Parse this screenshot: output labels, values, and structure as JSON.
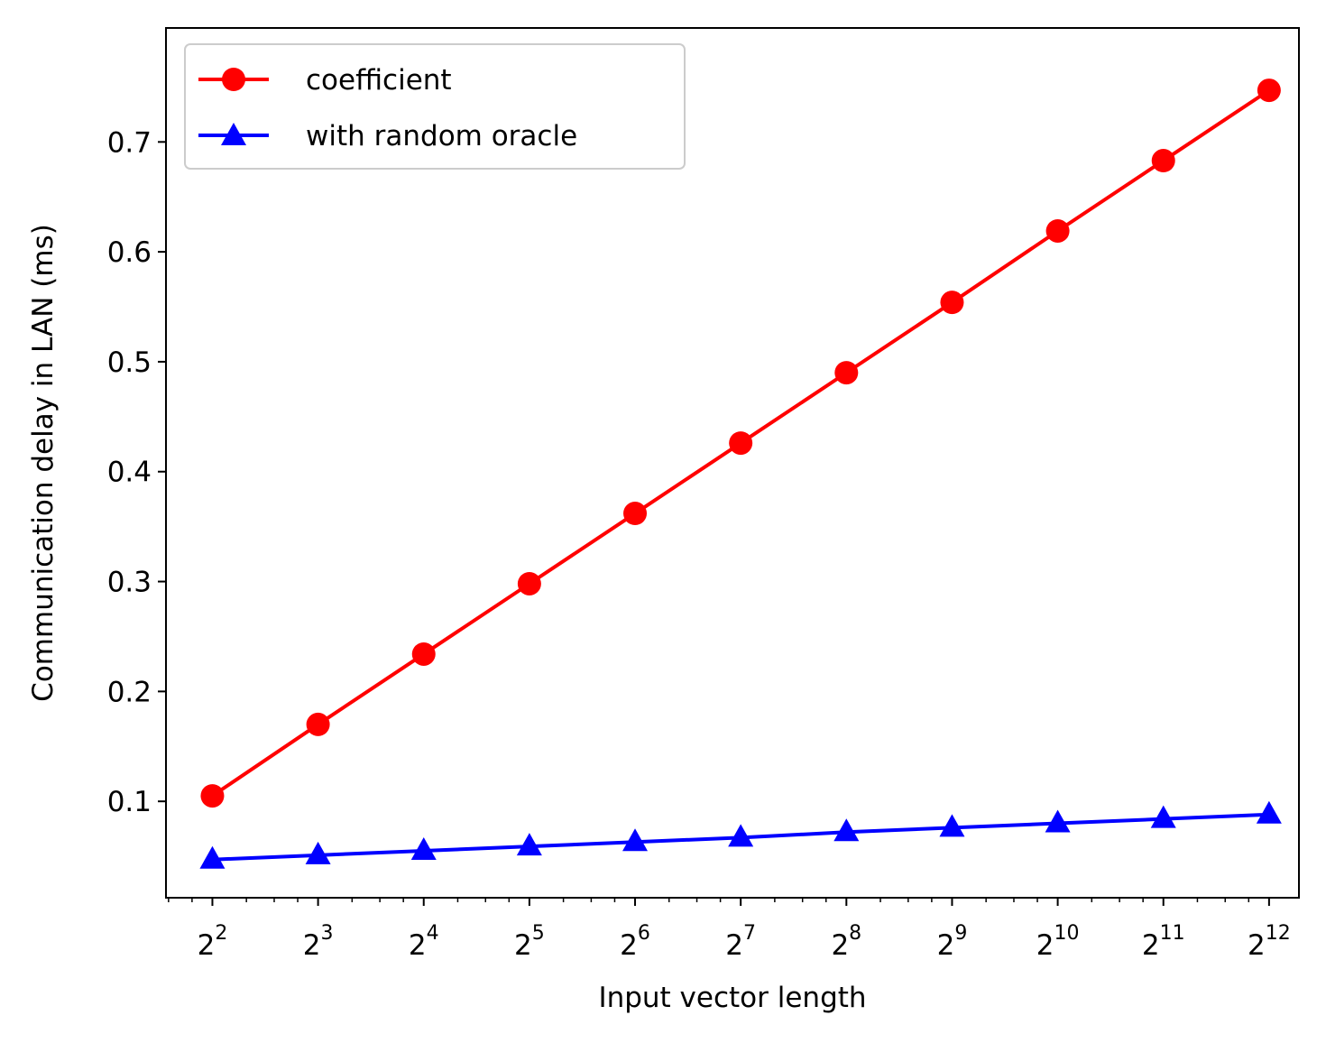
{
  "chart_data": {
    "type": "line",
    "title": "",
    "xlabel": "Input vector length",
    "ylabel": "Communication delay in LAN (ms)",
    "x_scale": "log2",
    "x": [
      4,
      8,
      16,
      32,
      64,
      128,
      256,
      512,
      1024,
      2048,
      4096
    ],
    "x_tick_labels": [
      {
        "base": "2",
        "exp": "2"
      },
      {
        "base": "2",
        "exp": "3"
      },
      {
        "base": "2",
        "exp": "4"
      },
      {
        "base": "2",
        "exp": "5"
      },
      {
        "base": "2",
        "exp": "6"
      },
      {
        "base": "2",
        "exp": "7"
      },
      {
        "base": "2",
        "exp": "8"
      },
      {
        "base": "2",
        "exp": "9"
      },
      {
        "base": "2",
        "exp": "10"
      },
      {
        "base": "2",
        "exp": "11"
      },
      {
        "base": "2",
        "exp": "12"
      }
    ],
    "y_ticks": [
      "0.1",
      "0.2",
      "0.3",
      "0.4",
      "0.5",
      "0.6",
      "0.7"
    ],
    "xlim": [
      2.95,
      4983
    ],
    "ylim": [
      0.0123,
      0.8037
    ],
    "grid": false,
    "legend_position": "upper-left",
    "series": [
      {
        "name": "coefficient",
        "color": "#ff0000",
        "marker": "circle",
        "values": [
          0.105,
          0.17,
          0.234,
          0.298,
          0.362,
          0.426,
          0.49,
          0.554,
          0.619,
          0.683,
          0.747
        ]
      },
      {
        "name": "with random oracle",
        "color": "#0000ff",
        "marker": "triangle",
        "values": [
          0.047,
          0.051,
          0.055,
          0.059,
          0.063,
          0.067,
          0.072,
          0.076,
          0.08,
          0.084,
          0.088
        ]
      }
    ]
  }
}
